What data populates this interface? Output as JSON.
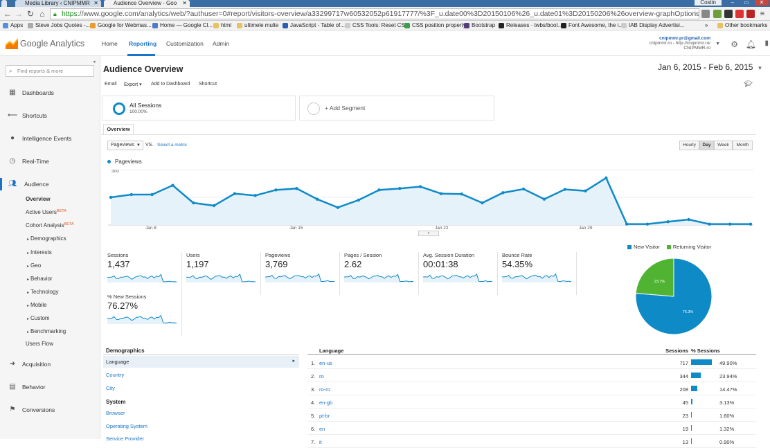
{
  "browser": {
    "tabs": [
      {
        "title": "Media Library ‹ CNIPMMR"
      },
      {
        "title": "Audience Overview - Goo"
      }
    ],
    "user": "Costin",
    "url_scheme": "https",
    "url_rest": "://www.google.com/analytics/web/?authuser=0#report/visitors-overview/a33299717w60532052p61917777/%3F_u.date00%3D20150106%26_u.date01%3D20150206%26overview-graphOptions.primaryConcept%",
    "bookmarks": [
      {
        "label": "Apps"
      },
      {
        "label": "Steve Jobs Quotes -..."
      },
      {
        "label": "Google for Webmas..."
      },
      {
        "label": "Home — Google Cl..."
      },
      {
        "label": "html"
      },
      {
        "label": "ultimele multe"
      },
      {
        "label": "JavaScript - Table of..."
      },
      {
        "label": "CSS Tools: Reset CSS"
      },
      {
        "label": "CSS position property"
      },
      {
        "label": "Bootstrap"
      },
      {
        "label": "Releases · twbs/boot..."
      },
      {
        "label": "Font Awesome, the i..."
      },
      {
        "label": "IAB Display Advertisi..."
      },
      {
        "label": "»"
      },
      {
        "label": "Other bookmarks"
      }
    ]
  },
  "header": {
    "logo_text": "Google Analytics",
    "nav": [
      "Home",
      "Reporting",
      "Customization",
      "Admin"
    ],
    "account_email": "cnipmmr.pr@gmail.com",
    "account_line2": "cnipmmr.ro - http://cnipmmr.ro/",
    "account_line3": "CNIPMMR.ro"
  },
  "sidebar": {
    "search_placeholder": "Find reports & more",
    "items": [
      {
        "label": "Dashboards"
      },
      {
        "label": "Shortcuts"
      },
      {
        "label": "Intelligence Events"
      },
      {
        "label": "Real-Time"
      },
      {
        "label": "Audience"
      },
      {
        "label": "Acquisition"
      },
      {
        "label": "Behavior"
      },
      {
        "label": "Conversions"
      }
    ],
    "audience_sub": [
      {
        "label": "Overview"
      },
      {
        "label": "Active Users",
        "badge": "BETA"
      },
      {
        "label": "Cohort Analysis",
        "badge": "BETA"
      },
      {
        "label": "Demographics"
      },
      {
        "label": "Interests"
      },
      {
        "label": "Geo"
      },
      {
        "label": "Behavior"
      },
      {
        "label": "Technology"
      },
      {
        "label": "Mobile"
      },
      {
        "label": "Custom"
      },
      {
        "label": "Benchmarking"
      },
      {
        "label": "Users Flow"
      }
    ]
  },
  "report": {
    "title": "Audience Overview",
    "date_range": "Jan 6, 2015 - Feb 6, 2015",
    "tools": [
      "Email",
      "Export ▾",
      "Add to Dashboard",
      "Shortcut"
    ],
    "segment1_name": "All Sessions",
    "segment1_pct": "100.00%",
    "segment2_label": "+ Add Segment",
    "tab": "Overview",
    "metric_select": "Pageviews",
    "vs": "VS.",
    "select_metric": "Select a metric",
    "granularity": [
      "Hourly",
      "Day",
      "Week",
      "Month"
    ],
    "legend": "Pageviews"
  },
  "chart_data": {
    "type": "line",
    "series": [
      {
        "name": "Pageviews",
        "values": [
          150,
          165,
          165,
          215,
          120,
          105,
          170,
          160,
          190,
          198,
          140,
          95,
          135,
          190,
          198,
          208,
          170,
          168,
          120,
          175,
          195,
          140,
          193,
          185,
          255,
          5,
          5,
          18,
          30,
          5,
          5,
          5
        ]
      }
    ],
    "x": [
      "Jan 6",
      "Jan 7",
      "Jan 8",
      "Jan 9",
      "Jan 10",
      "Jan 11",
      "Jan 12",
      "Jan 13",
      "Jan 14",
      "Jan 15",
      "Jan 16",
      "Jan 17",
      "Jan 18",
      "Jan 19",
      "Jan 20",
      "Jan 21",
      "Jan 22",
      "Jan 23",
      "Jan 24",
      "Jan 25",
      "Jan 26",
      "Jan 27",
      "Jan 28",
      "Jan 29",
      "Jan 30",
      "Jan 31",
      "Feb 1",
      "Feb 2",
      "Feb 3",
      "Feb 4",
      "Feb 5",
      "Feb 6"
    ],
    "xticks": [
      "Jan 8",
      "Jan 15",
      "Jan 22",
      "Jan 29"
    ],
    "yticks": [
      "300",
      "150"
    ],
    "ylim": [
      0,
      300
    ]
  },
  "kpis": [
    {
      "label": "Sessions",
      "value": "1,437"
    },
    {
      "label": "Users",
      "value": "1,197"
    },
    {
      "label": "Pageviews",
      "value": "3,769"
    },
    {
      "label": "Pages / Session",
      "value": "2.62"
    },
    {
      "label": "Avg. Session Duration",
      "value": "00:01:38"
    },
    {
      "label": "Bounce Rate",
      "value": "54.35%"
    },
    {
      "label": "% New Sessions",
      "value": "76.27%"
    }
  ],
  "pie": {
    "type": "pie",
    "legend": [
      {
        "name": "New Visitor",
        "color": "#0e8ac7"
      },
      {
        "name": "Returning Visitor",
        "color": "#50b432"
      }
    ],
    "values": [
      76.3,
      23.7
    ],
    "labels": [
      "76.3%",
      "23.7%"
    ]
  },
  "demographics": {
    "heading": "Demographics",
    "items": [
      "Language",
      "Country",
      "City"
    ],
    "system_heading": "System",
    "system_items": [
      "Browser",
      "Operating System",
      "Service Provider"
    ]
  },
  "language_table": {
    "col1": "Language",
    "col2": "Sessions",
    "col3": "% Sessions",
    "rows": [
      {
        "n": "1.",
        "lang": "en-us",
        "sessions": "717",
        "pct": "49.90%",
        "frac": 0.499
      },
      {
        "n": "2.",
        "lang": "ro",
        "sessions": "344",
        "pct": "23.94%",
        "frac": 0.2394
      },
      {
        "n": "3.",
        "lang": "ro-ro",
        "sessions": "208",
        "pct": "14.47%",
        "frac": 0.1447
      },
      {
        "n": "4.",
        "lang": "en-gb",
        "sessions": "45",
        "pct": "3.13%",
        "frac": 0.0313
      },
      {
        "n": "5.",
        "lang": "pt-br",
        "sessions": "23",
        "pct": "1.60%",
        "frac": 0.016
      },
      {
        "n": "6.",
        "lang": "en",
        "sessions": "19",
        "pct": "1.32%",
        "frac": 0.0132
      },
      {
        "n": "7.",
        "lang": "it",
        "sessions": "13",
        "pct": "0.90%",
        "frac": 0.009
      }
    ]
  }
}
